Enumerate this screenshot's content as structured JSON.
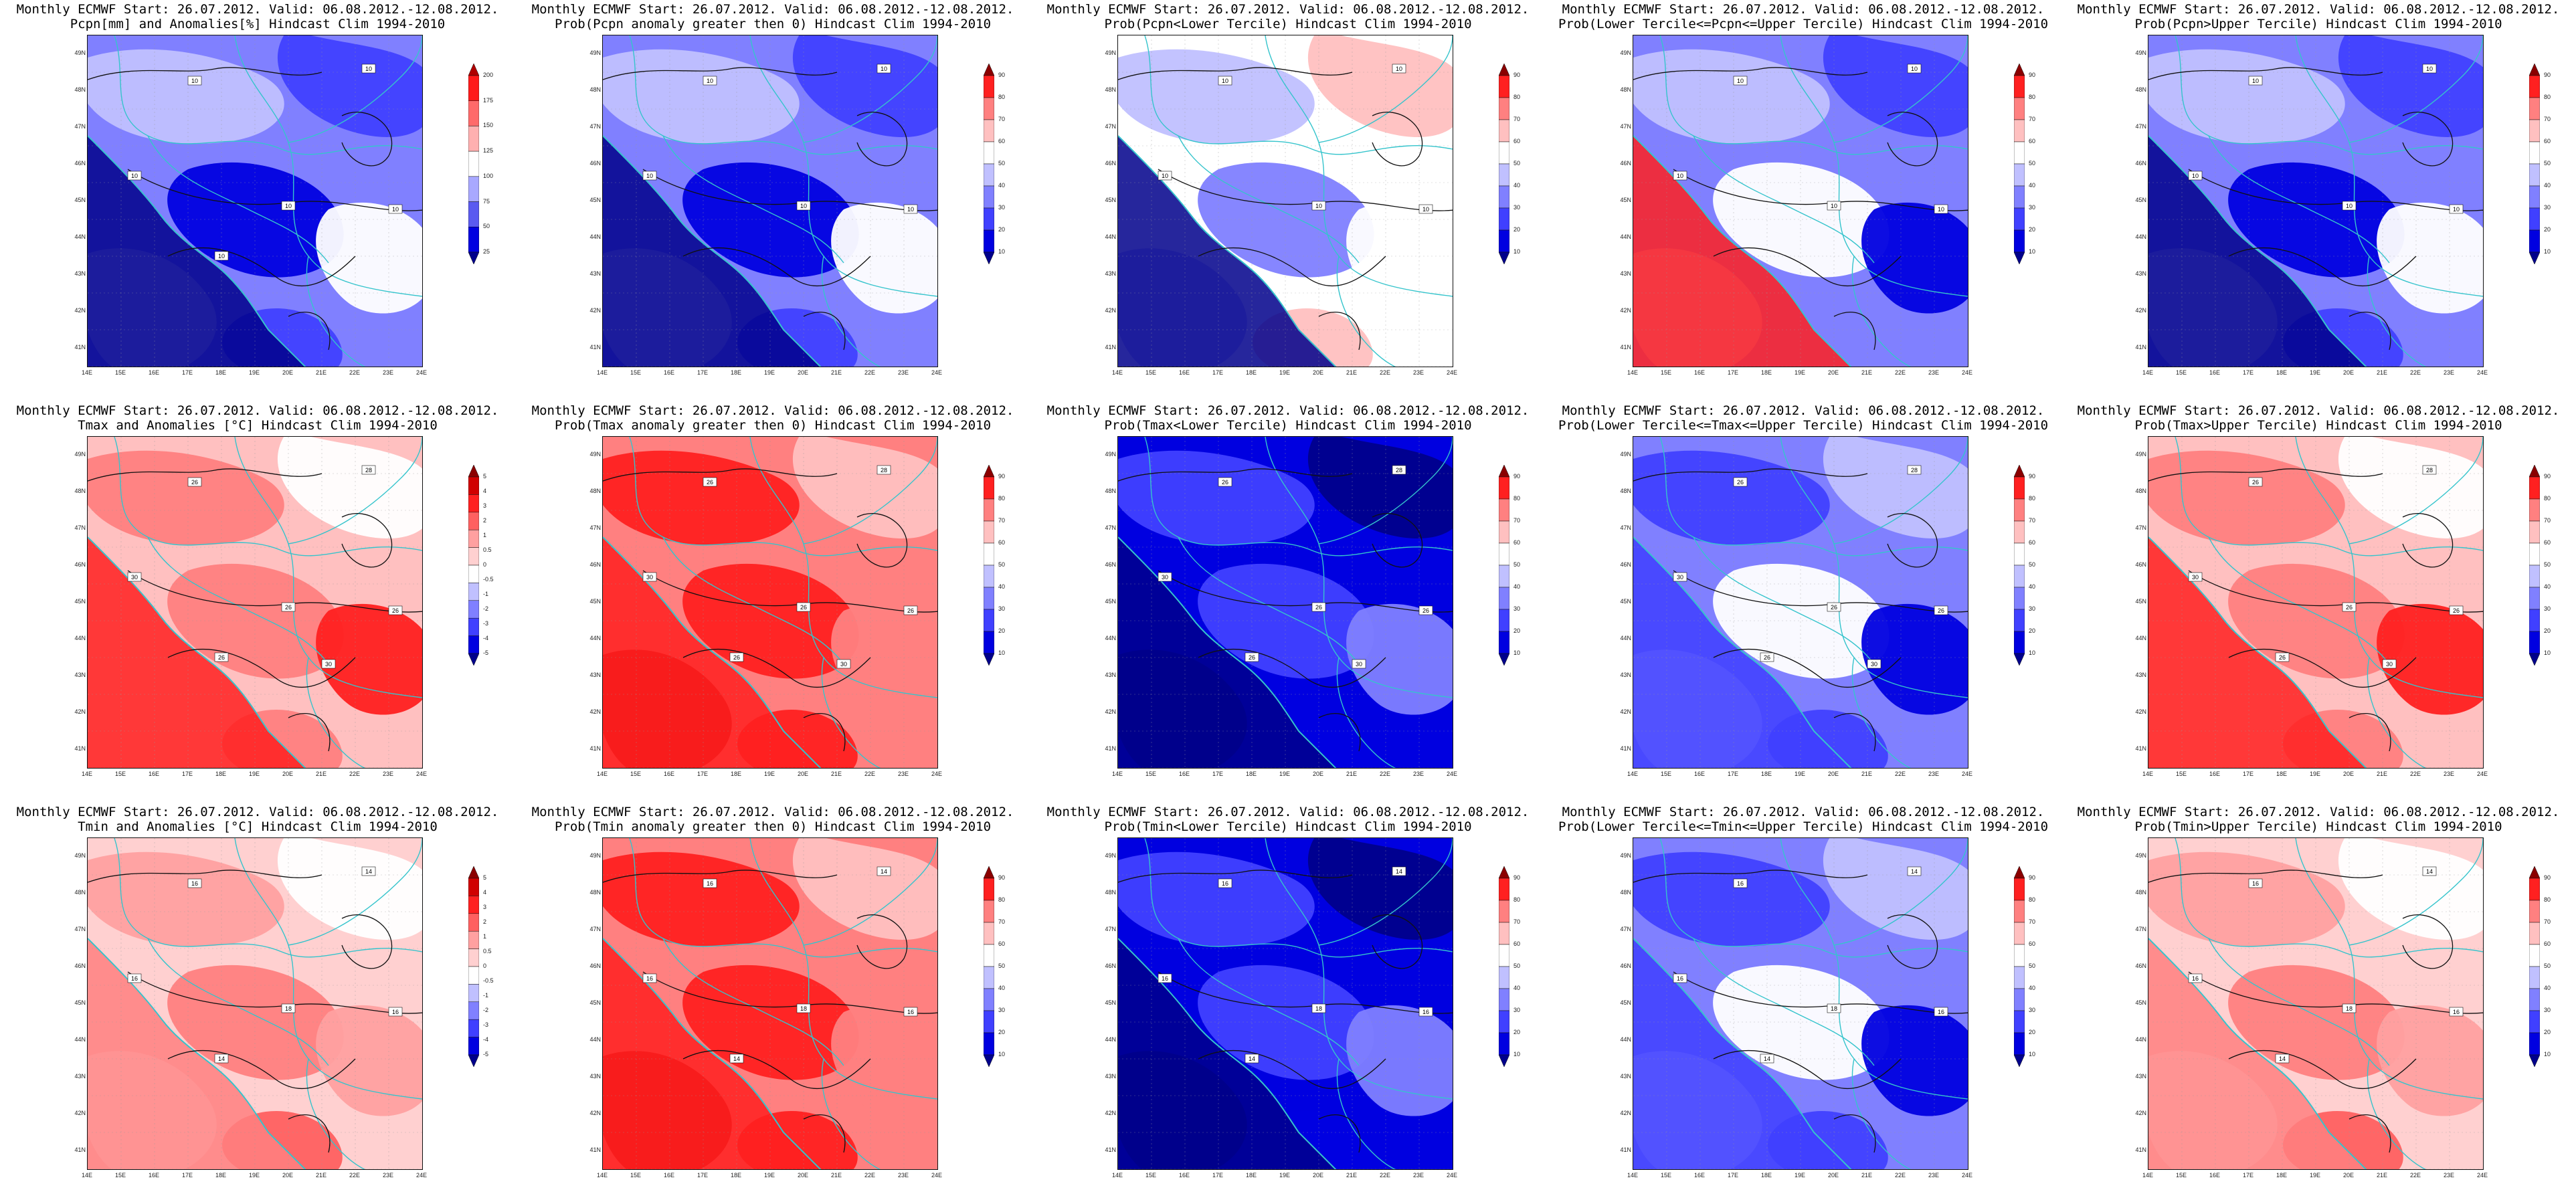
{
  "header_line": "Monthly ECMWF Start: 26.07.2012. Valid: 06.08.2012.-12.08.2012.",
  "lat_labels": [
    "49N",
    "48N",
    "47N",
    "46N",
    "45N",
    "44N",
    "43N",
    "42N",
    "41N"
  ],
  "lon_labels": [
    "14E",
    "15E",
    "16E",
    "17E",
    "18E",
    "19E",
    "20E",
    "21E",
    "22E",
    "23E",
    "24E"
  ],
  "colors": {
    "coast": "#35c4cc",
    "contour": "#111111",
    "scale_anom_precip": [
      "#00008b",
      "#0000e0",
      "#5a5af0",
      "#a8a8ff",
      "#ffffff",
      "#ffb0b0",
      "#ff6a6a",
      "#ff1a1a",
      "#b00000"
    ],
    "scale_anom_temp": [
      "#00008b",
      "#0000e0",
      "#4040ff",
      "#8080ff",
      "#c0c0ff",
      "#ffffff",
      "#ffd0d0",
      "#ffa0a0",
      "#ff6060",
      "#ff2020",
      "#d00000",
      "#8b0000"
    ],
    "scale_prob": [
      "#00008b",
      "#0000e0",
      "#4040ff",
      "#8080ff",
      "#c0c0ff",
      "#ffffff",
      "#ffc0c0",
      "#ff8080",
      "#ff2020",
      "#8b0000"
    ]
  },
  "panels": [
    {
      "subtitle": "Pcpn[mm] and Anomalies[%] Hindcast Clim 1994-2010",
      "scale": "anom_precip",
      "ticks": [
        "200",
        "175",
        "150",
        "125",
        "100",
        "75",
        "50",
        "25"
      ],
      "contour_labels": [
        "10",
        "10",
        "10",
        "10",
        "10",
        "10"
      ],
      "field": "low_blue"
    },
    {
      "subtitle": "Prob(Pcpn anomaly greater then 0) Hindcast Clim 1994-2010",
      "scale": "prob",
      "ticks": [
        "90",
        "80",
        "70",
        "60",
        "50",
        "40",
        "30",
        "20",
        "10"
      ],
      "contour_labels": [
        "10",
        "10",
        "10",
        "10",
        "10"
      ],
      "field": "low_blue"
    },
    {
      "subtitle": "Prob(Pcpn<Lower Tercile) Hindcast Clim 1994-2010",
      "scale": "prob",
      "ticks": [
        "90",
        "80",
        "70",
        "60",
        "50",
        "40",
        "30",
        "20",
        "10"
      ],
      "contour_labels": [
        "10",
        "10",
        "10",
        "10",
        "10"
      ],
      "field": "white_mixed"
    },
    {
      "subtitle": "Prob(Lower Tercile<=Pcpn<=Upper Tercile) Hindcast Clim 1994-2010",
      "scale": "prob",
      "ticks": [
        "90",
        "80",
        "70",
        "60",
        "50",
        "40",
        "30",
        "20",
        "10"
      ],
      "contour_labels": [
        "10",
        "10",
        "10",
        "10",
        "10"
      ],
      "field": "blue_redcoast"
    },
    {
      "subtitle": "Prob(Pcpn>Upper Tercile) Hindcast Clim 1994-2010",
      "scale": "prob",
      "ticks": [
        "90",
        "80",
        "70",
        "60",
        "50",
        "40",
        "30",
        "20",
        "10"
      ],
      "contour_labels": [
        "10",
        "10",
        "10",
        "10",
        "10"
      ],
      "field": "low_blue"
    },
    {
      "subtitle": "Tmax and Anomalies [°C] Hindcast Clim 1994-2010",
      "scale": "anom_temp",
      "ticks": [
        "5",
        "4",
        "3",
        "2",
        "1",
        "0.5",
        "0",
        "-0.5",
        "-1",
        "-2",
        "-3",
        "-4",
        "-5"
      ],
      "contour_labels": [
        "26",
        "28",
        "30",
        "26",
        "26",
        "26",
        "30"
      ],
      "field": "red_mid"
    },
    {
      "subtitle": "Prob(Tmax anomaly greater then 0) Hindcast Clim 1994-2010",
      "scale": "prob",
      "ticks": [
        "90",
        "80",
        "70",
        "60",
        "50",
        "40",
        "30",
        "20",
        "10"
      ],
      "contour_labels": [
        "26",
        "28",
        "30",
        "26",
        "26",
        "26",
        "30"
      ],
      "field": "red_strong"
    },
    {
      "subtitle": "Prob(Tmax<Lower Tercile) Hindcast Clim 1994-2010",
      "scale": "prob",
      "ticks": [
        "90",
        "80",
        "70",
        "60",
        "50",
        "40",
        "30",
        "20",
        "10"
      ],
      "contour_labels": [
        "26",
        "28",
        "30",
        "26",
        "26",
        "26",
        "30"
      ],
      "field": "deep_blue"
    },
    {
      "subtitle": "Prob(Lower Tercile<=Tmax<=Upper Tercile) Hindcast Clim 1994-2010",
      "scale": "prob",
      "ticks": [
        "90",
        "80",
        "70",
        "60",
        "50",
        "40",
        "30",
        "20",
        "10"
      ],
      "contour_labels": [
        "26",
        "28",
        "30",
        "26",
        "26",
        "26",
        "30"
      ],
      "field": "blue_mixed"
    },
    {
      "subtitle": "Prob(Tmax>Upper Tercile) Hindcast Clim 1994-2010",
      "scale": "prob",
      "ticks": [
        "90",
        "80",
        "70",
        "60",
        "50",
        "40",
        "30",
        "20",
        "10"
      ],
      "contour_labels": [
        "26",
        "28",
        "30",
        "26",
        "26",
        "26",
        "30"
      ],
      "field": "red_mid"
    },
    {
      "subtitle": "Tmin and Anomalies [°C] Hindcast Clim 1994-2010",
      "scale": "anom_temp",
      "ticks": [
        "5",
        "4",
        "3",
        "2",
        "1",
        "0.5",
        "0",
        "-0.5",
        "-1",
        "-2",
        "-3",
        "-4",
        "-5"
      ],
      "contour_labels": [
        "16",
        "14",
        "16",
        "18",
        "16",
        "14"
      ],
      "field": "red_light"
    },
    {
      "subtitle": "Prob(Tmin anomaly greater then 0) Hindcast Clim 1994-2010",
      "scale": "prob",
      "ticks": [
        "90",
        "80",
        "70",
        "60",
        "50",
        "40",
        "30",
        "20",
        "10"
      ],
      "contour_labels": [
        "16",
        "14",
        "16",
        "18",
        "16",
        "14"
      ],
      "field": "red_strong"
    },
    {
      "subtitle": "Prob(Tmin<Lower Tercile) Hindcast Clim 1994-2010",
      "scale": "prob",
      "ticks": [
        "90",
        "80",
        "70",
        "60",
        "50",
        "40",
        "30",
        "20",
        "10"
      ],
      "contour_labels": [
        "16",
        "14",
        "16",
        "18",
        "16",
        "14"
      ],
      "field": "deep_blue"
    },
    {
      "subtitle": "Prob(Lower Tercile<=Tmin<=Upper Tercile) Hindcast Clim 1994-2010",
      "scale": "prob",
      "ticks": [
        "90",
        "80",
        "70",
        "60",
        "50",
        "40",
        "30",
        "20",
        "10"
      ],
      "contour_labels": [
        "16",
        "14",
        "16",
        "18",
        "16",
        "14"
      ],
      "field": "blue_mixed"
    },
    {
      "subtitle": "Prob(Tmin>Upper Tercile) Hindcast Clim 1994-2010",
      "scale": "prob",
      "ticks": [
        "90",
        "80",
        "70",
        "60",
        "50",
        "40",
        "30",
        "20",
        "10"
      ],
      "contour_labels": [
        "16",
        "14",
        "16",
        "18",
        "16",
        "14"
      ],
      "field": "red_light"
    }
  ]
}
